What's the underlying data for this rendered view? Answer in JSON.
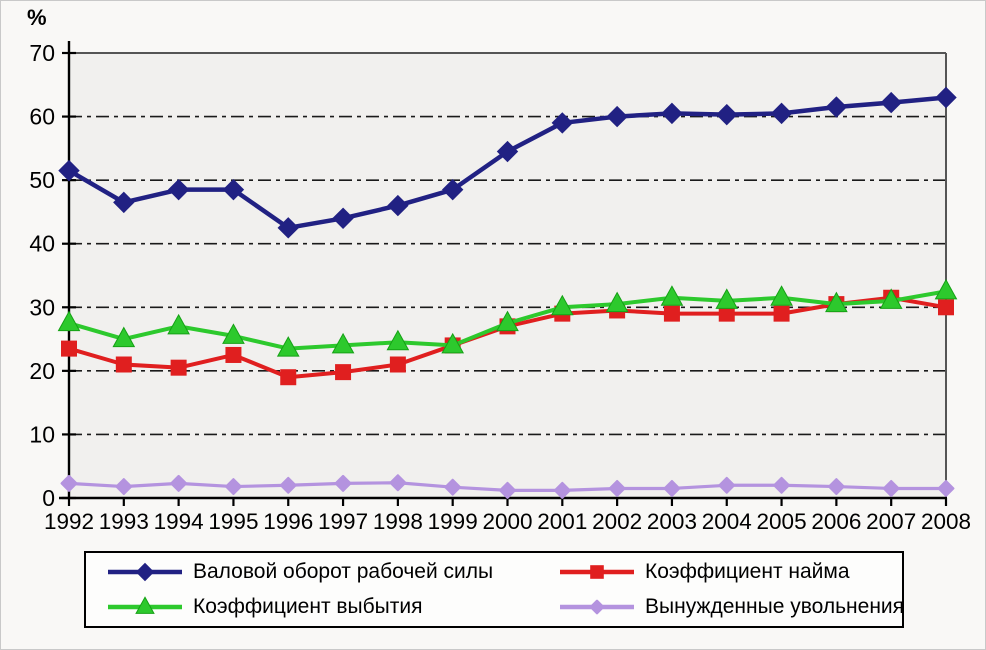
{
  "chart_data": {
    "type": "line",
    "title": "",
    "xlabel": "",
    "ylabel": "%",
    "ylim": [
      0,
      70
    ],
    "yticks": [
      "0",
      "10",
      "20",
      "30",
      "40",
      "50",
      "60",
      "70"
    ],
    "grid": "horizontal-dash-dot",
    "legend_position": "bottom-box-2x2",
    "categories": [
      "1992",
      "1993",
      "1994",
      "1995",
      "1996",
      "1997",
      "1998",
      "1999",
      "2000",
      "2001",
      "2002",
      "2003",
      "2004",
      "2005",
      "2006",
      "2007",
      "2008"
    ],
    "series": [
      {
        "key": "gross-labor-turnover",
        "name": "Валовой оборот рабочей силы",
        "color": "#212183",
        "marker": "diamond",
        "values": [
          51.5,
          46.5,
          48.5,
          48.5,
          42.5,
          44.0,
          46.0,
          48.5,
          54.5,
          59.0,
          60.0,
          60.5,
          60.3,
          60.5,
          61.5,
          62.2,
          63.0
        ]
      },
      {
        "key": "hiring-rate",
        "name": "Коэффициент найма",
        "color": "#e01f1f",
        "marker": "square",
        "values": [
          23.5,
          21.0,
          20.5,
          22.5,
          19.0,
          19.8,
          21.0,
          24.0,
          27.0,
          29.0,
          29.5,
          29.0,
          29.0,
          29.0,
          30.5,
          31.5,
          30.0
        ]
      },
      {
        "key": "separation-rate",
        "name": "Коэффициент выбытия",
        "color": "#2dc92d",
        "marker": "triangle",
        "values": [
          27.5,
          25.0,
          27.0,
          25.5,
          23.5,
          24.0,
          24.5,
          24.0,
          27.5,
          30.0,
          30.5,
          31.5,
          31.0,
          31.5,
          30.5,
          31.0,
          32.5
        ]
      },
      {
        "key": "forced-layoffs",
        "name": "Вынужденные увольнения",
        "color": "#b493df",
        "marker": "diamond-small",
        "values": [
          2.3,
          1.8,
          2.3,
          1.8,
          2.0,
          2.3,
          2.4,
          1.7,
          1.2,
          1.2,
          1.5,
          1.5,
          2.0,
          2.0,
          1.8,
          1.5,
          1.5
        ]
      }
    ]
  }
}
